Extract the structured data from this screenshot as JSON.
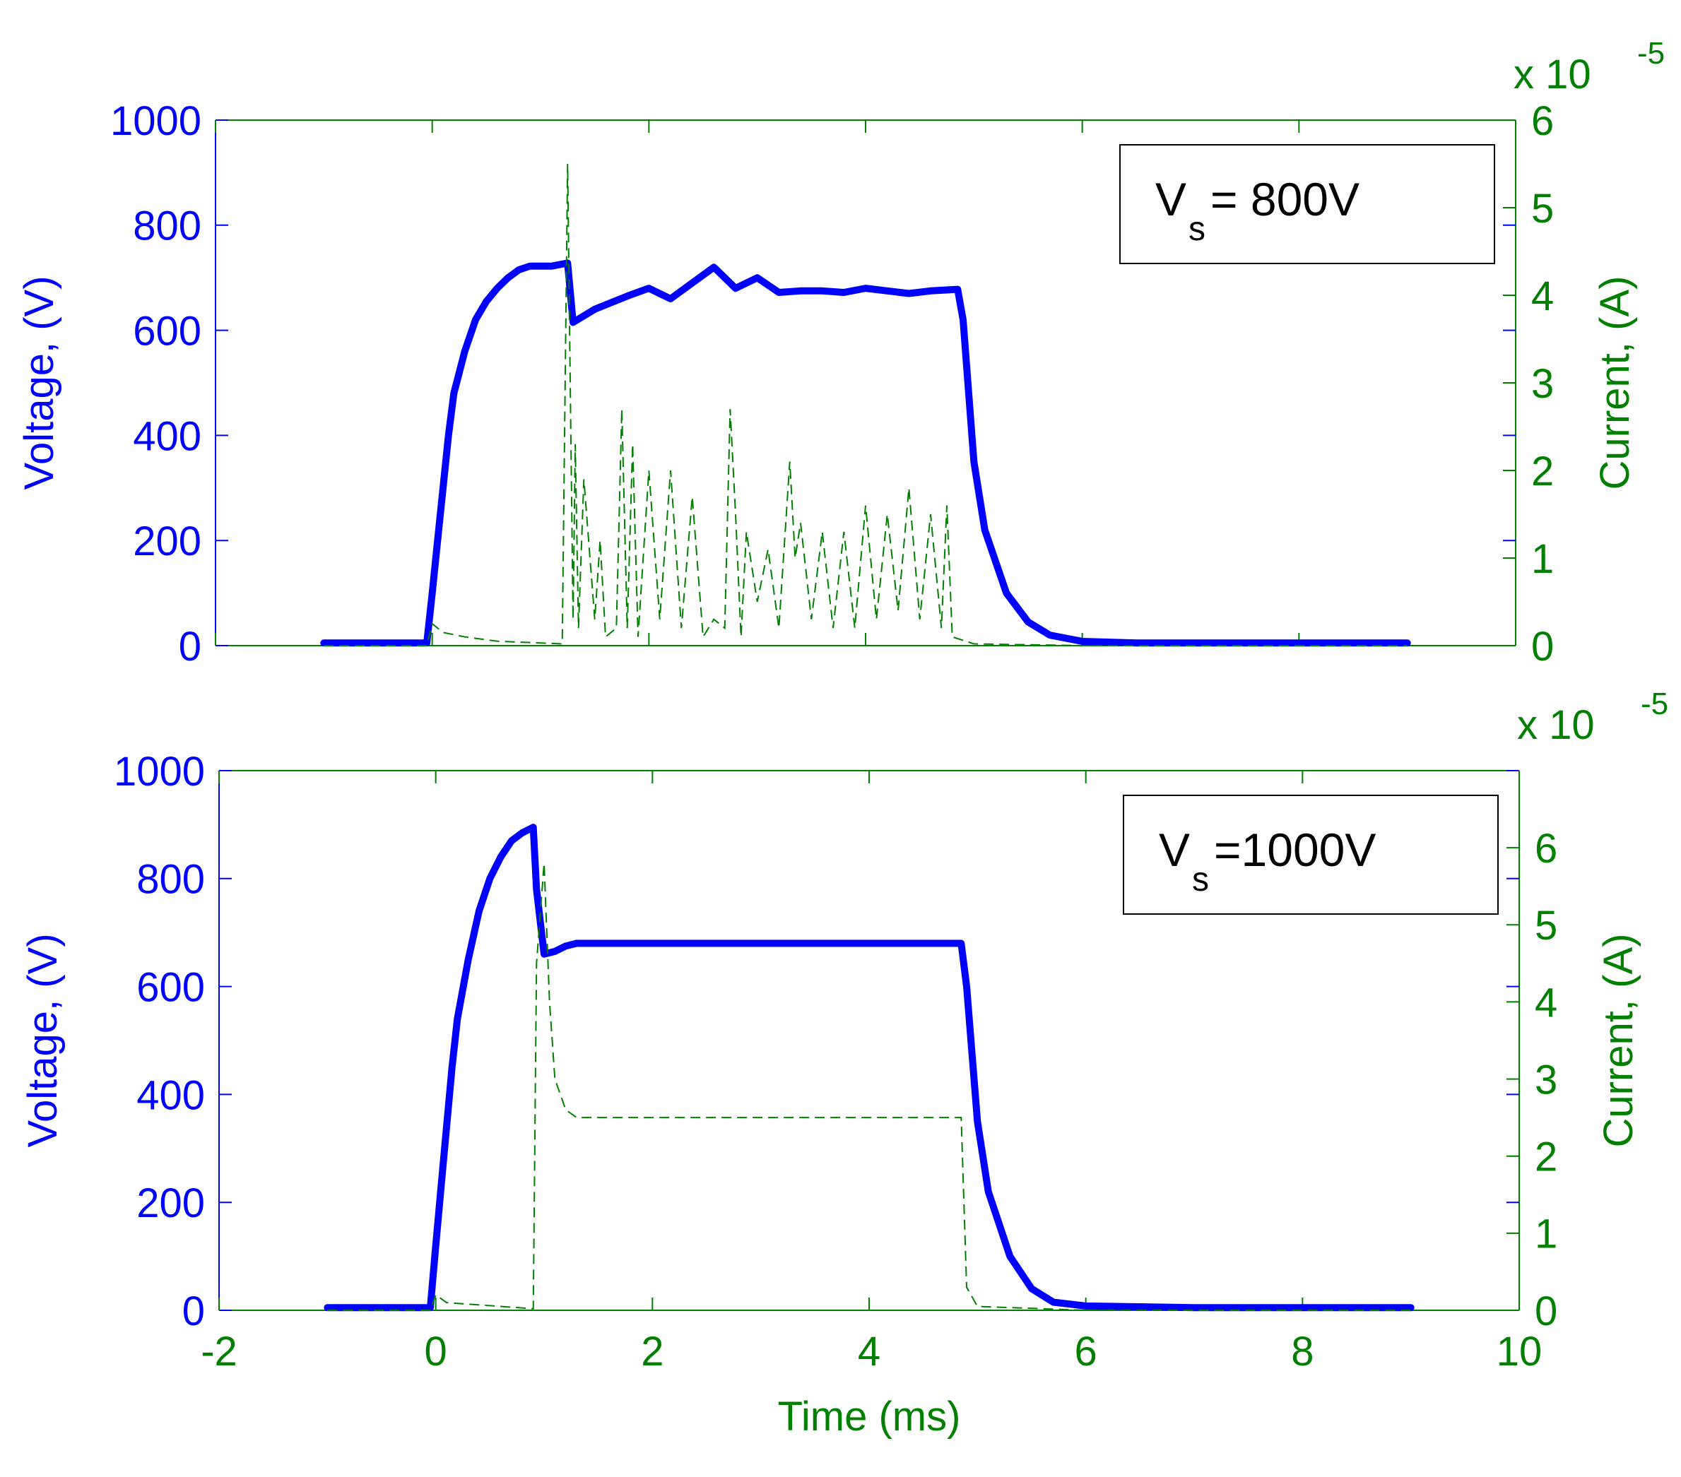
{
  "colors": {
    "voltage": "#0000ff",
    "current": "#007f00",
    "axis_left": "#0000ff",
    "axis_right": "#007f00",
    "axis_bottom": "#007f00",
    "frame": "#007f00",
    "background": "#ffffff"
  },
  "chart_data": [
    {
      "type": "line",
      "xlim": [
        -2,
        10
      ],
      "x_ticks": [
        "-2",
        "0",
        "2",
        "4",
        "6",
        "8",
        "10"
      ],
      "x_ticks_visible": false,
      "xlabel": "",
      "ylabel_left": "Voltage, (V)",
      "ylabel_right": "Current, (A)",
      "ylim_left": [
        0,
        1000
      ],
      "yticks_left": [
        "0",
        "200",
        "400",
        "600",
        "800",
        "1000"
      ],
      "ylim_right": [
        0,
        6
      ],
      "yticks_right": [
        "0",
        "1",
        "2",
        "3",
        "4",
        "5",
        "6"
      ],
      "exponent_label": "x 10",
      "exponent_power": "-5",
      "legend": {
        "prefix": "V",
        "sub": "s",
        "rest": " = 800V"
      },
      "legend_position": "top-right",
      "grid": false,
      "series": [
        {
          "axis": "left",
          "style": "solid",
          "x": [
            -1.0,
            -0.05,
            0.0,
            0.05,
            0.1,
            0.15,
            0.2,
            0.3,
            0.4,
            0.5,
            0.6,
            0.7,
            0.8,
            0.9,
            1.1,
            1.25,
            1.3,
            1.5,
            1.8,
            2.0,
            2.2,
            2.4,
            2.6,
            2.8,
            3.0,
            3.2,
            3.4,
            3.6,
            3.8,
            4.0,
            4.2,
            4.4,
            4.6,
            4.85,
            4.9,
            5.0,
            5.1,
            5.3,
            5.5,
            5.7,
            6.0,
            6.5,
            7.0,
            8.0,
            9.0
          ],
          "values": [
            5,
            5,
            100,
            200,
            300,
            400,
            480,
            560,
            620,
            655,
            680,
            700,
            715,
            722,
            722,
            728,
            615,
            640,
            665,
            680,
            660,
            690,
            720,
            680,
            700,
            672,
            675,
            675,
            672,
            680,
            675,
            670,
            675,
            678,
            620,
            350,
            220,
            100,
            45,
            20,
            8,
            5,
            5,
            5,
            5
          ]
        },
        {
          "axis": "right",
          "style": "dashed",
          "x": [
            -1.0,
            -0.05,
            0.0,
            0.1,
            0.3,
            0.6,
            1.2,
            1.25,
            1.3,
            1.32,
            1.35,
            1.4,
            1.5,
            1.55,
            1.6,
            1.7,
            1.75,
            1.8,
            1.85,
            1.9,
            2.0,
            2.1,
            2.2,
            2.3,
            2.4,
            2.5,
            2.6,
            2.7,
            2.75,
            2.8,
            2.85,
            2.9,
            3.0,
            3.1,
            3.2,
            3.3,
            3.35,
            3.4,
            3.5,
            3.6,
            3.7,
            3.8,
            3.9,
            4.0,
            4.1,
            4.2,
            4.3,
            4.4,
            4.5,
            4.6,
            4.7,
            4.75,
            4.8,
            5.0,
            6.0,
            9.0
          ],
          "values": [
            0,
            0,
            0.25,
            0.15,
            0.1,
            0.05,
            0.02,
            5.5,
            0.3,
            2.3,
            0.2,
            1.9,
            0.3,
            1.2,
            0.1,
            0.2,
            2.7,
            0.2,
            2.3,
            0.1,
            2.0,
            0.3,
            2.0,
            0.2,
            1.7,
            0.1,
            0.3,
            0.2,
            2.7,
            1.5,
            0.1,
            1.3,
            0.5,
            1.1,
            0.2,
            2.1,
            1.0,
            1.4,
            0.3,
            1.3,
            0.2,
            1.3,
            0.2,
            1.6,
            0.3,
            1.5,
            0.4,
            1.8,
            0.3,
            1.5,
            0.2,
            1.6,
            0.1,
            0.02,
            0,
            0
          ]
        }
      ]
    },
    {
      "type": "line",
      "xlim": [
        -2,
        10
      ],
      "x_ticks": [
        "-2",
        "0",
        "2",
        "4",
        "6",
        "8",
        "10"
      ],
      "x_ticks_visible": true,
      "xlabel": "Time (ms)",
      "ylabel_left": "Voltage, (V)",
      "ylabel_right": "Current, (A)",
      "ylim_left": [
        0,
        1000
      ],
      "yticks_left": [
        "0",
        "200",
        "400",
        "600",
        "800",
        "1000"
      ],
      "ylim_right": [
        0,
        7
      ],
      "yticks_right": [
        "0",
        "1",
        "2",
        "3",
        "4",
        "5",
        "6"
      ],
      "exponent_label": "x 10",
      "exponent_power": "-5",
      "legend": {
        "prefix": "V",
        "sub": "s",
        "rest": " =1000V"
      },
      "legend_position": "top-right",
      "grid": false,
      "series": [
        {
          "axis": "left",
          "style": "solid",
          "x": [
            -1.0,
            -0.05,
            0.0,
            0.05,
            0.1,
            0.15,
            0.2,
            0.3,
            0.4,
            0.5,
            0.6,
            0.7,
            0.8,
            0.9,
            0.93,
            1.0,
            1.1,
            1.2,
            1.3,
            2.0,
            3.0,
            4.0,
            4.85,
            4.9,
            5.0,
            5.1,
            5.3,
            5.5,
            5.7,
            6.0,
            7.0,
            8.0,
            9.0
          ],
          "values": [
            5,
            5,
            120,
            230,
            340,
            450,
            540,
            650,
            740,
            800,
            840,
            870,
            885,
            895,
            780,
            660,
            665,
            675,
            680,
            680,
            680,
            680,
            680,
            600,
            350,
            220,
            100,
            40,
            15,
            8,
            5,
            5,
            5
          ]
        },
        {
          "axis": "right",
          "style": "dashed",
          "x": [
            -1.0,
            -0.05,
            0.0,
            0.1,
            0.3,
            0.6,
            0.9,
            0.93,
            1.0,
            1.05,
            1.1,
            1.2,
            1.3,
            1.4,
            2.0,
            3.0,
            4.0,
            4.85,
            4.9,
            5.0,
            6.0,
            9.0
          ],
          "values": [
            0,
            0,
            0.2,
            0.1,
            0.08,
            0.05,
            0.02,
            4.5,
            5.8,
            4.0,
            3.0,
            2.6,
            2.5,
            2.5,
            2.5,
            2.5,
            2.5,
            2.5,
            0.3,
            0.05,
            0,
            0
          ]
        }
      ]
    }
  ]
}
